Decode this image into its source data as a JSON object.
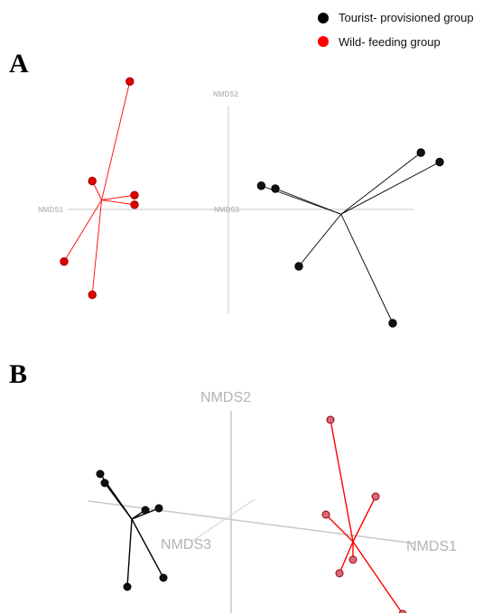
{
  "legend": {
    "items": [
      {
        "label": "Tourist- provisioned group",
        "color": "#000000"
      },
      {
        "label": "Wild- feeding group",
        "color": "#ff0000"
      }
    ]
  },
  "panels": [
    {
      "label": "A",
      "axes": {
        "nmds1": "NMDS1",
        "nmds2": "NMDS2",
        "nmds3": "NMDS3"
      }
    },
    {
      "label": "B",
      "axes": {
        "nmds1": "NMDS1",
        "nmds2": "NMDS2",
        "nmds3": "NMDS3"
      }
    }
  ],
  "chart_data": [
    {
      "type": "scatter",
      "projection": "3d",
      "title": "A",
      "axis_labels": [
        "NMDS1",
        "NMDS2",
        "NMDS3"
      ],
      "grid": false,
      "legend_position": "top-right",
      "series": [
        {
          "name": "Wild- feeding group",
          "color": "#ff0000",
          "centroid": [
            -1.35,
            0.1
          ],
          "points": [
            [
              -1.05,
              1.35
            ],
            [
              -1.45,
              0.3
            ],
            [
              -1.0,
              0.15
            ],
            [
              -1.0,
              0.05
            ],
            [
              -1.75,
              -0.55
            ],
            [
              -1.45,
              -0.9
            ]
          ]
        },
        {
          "name": "Tourist- provisioned group",
          "color": "#000000",
          "centroid": [
            1.2,
            -0.05
          ],
          "points": [
            [
              2.05,
              0.6
            ],
            [
              2.25,
              0.5
            ],
            [
              0.35,
              0.25
            ],
            [
              0.5,
              0.22
            ],
            [
              0.75,
              -0.6
            ],
            [
              1.75,
              -1.2
            ]
          ]
        }
      ]
    },
    {
      "type": "scatter",
      "projection": "3d",
      "title": "B",
      "axis_labels": [
        "NMDS1",
        "NMDS2",
        "NMDS3"
      ],
      "grid": false,
      "legend_position": "top-right",
      "series": [
        {
          "name": "Wild- feeding group",
          "color": "#ff0000",
          "centroid": [
            1.35,
            -0.25
          ],
          "points": [
            [
              1.1,
              1.1
            ],
            [
              1.6,
              0.25
            ],
            [
              1.05,
              0.05
            ],
            [
              1.35,
              -0.45
            ],
            [
              1.2,
              -0.6
            ],
            [
              1.9,
              -1.05
            ]
          ]
        },
        {
          "name": "Tourist- provisioned group",
          "color": "#000000",
          "centroid": [
            -1.1,
            0.0
          ],
          "points": [
            [
              -1.45,
              0.5
            ],
            [
              -1.4,
              0.4
            ],
            [
              -0.95,
              0.1
            ],
            [
              -0.8,
              0.12
            ],
            [
              -1.15,
              -0.75
            ],
            [
              -0.75,
              -0.65
            ]
          ]
        }
      ]
    }
  ]
}
